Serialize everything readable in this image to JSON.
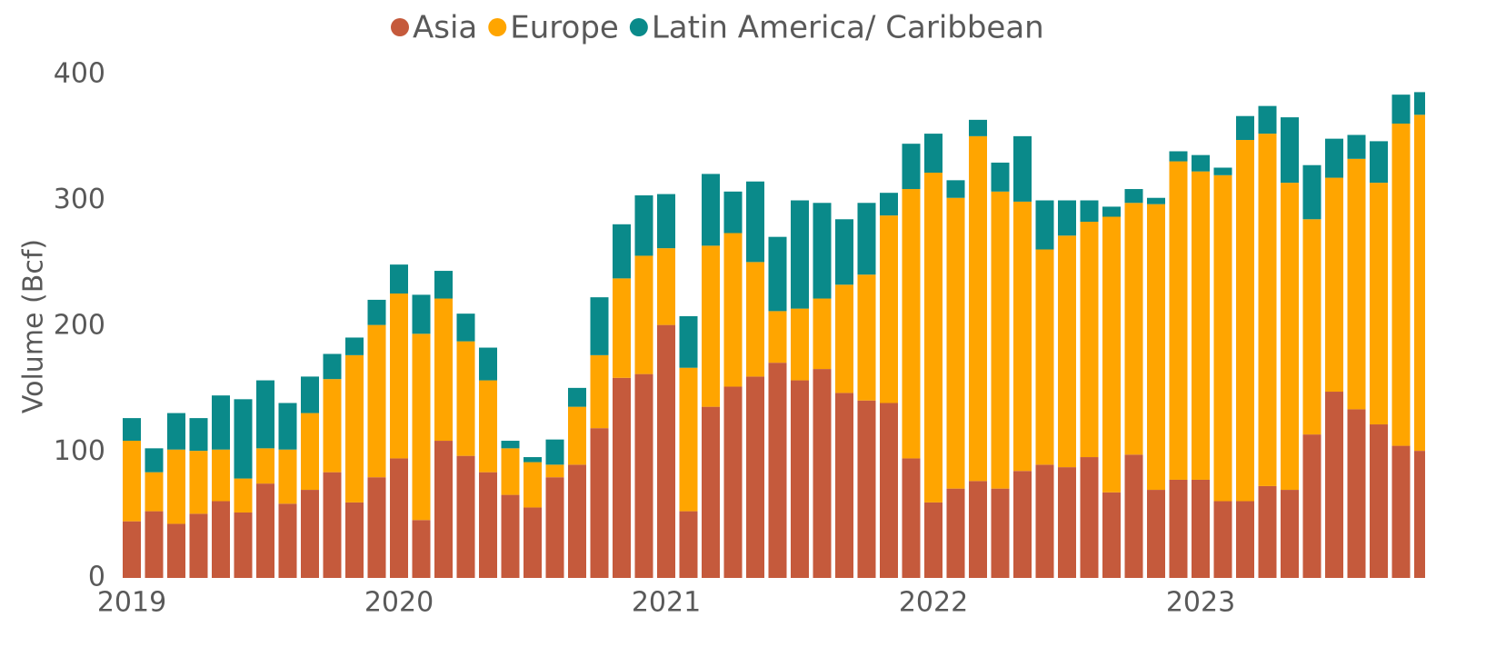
{
  "chart_data": {
    "type": "stacked_bar",
    "y_label": "Volume (Bcf)",
    "categories": [
      "2019",
      null,
      null,
      null,
      null,
      null,
      null,
      null,
      null,
      null,
      null,
      null,
      "2020",
      null,
      null,
      null,
      null,
      null,
      null,
      null,
      null,
      null,
      null,
      null,
      "2021",
      null,
      null,
      null,
      null,
      null,
      null,
      null,
      null,
      null,
      null,
      null,
      "2022",
      null,
      null,
      null,
      null,
      null,
      null,
      null,
      null,
      null,
      null,
      null,
      "2023",
      null,
      null,
      null,
      null,
      null,
      null,
      null,
      null,
      null,
      null
    ],
    "series": [
      {
        "name": "Asia",
        "color": "#c55a3c",
        "values": [
          45,
          53,
          43,
          51,
          61,
          52,
          75,
          59,
          70,
          84,
          60,
          80,
          95,
          46,
          109,
          97,
          84,
          66,
          56,
          80,
          90,
          119,
          159,
          162,
          201,
          53,
          136,
          152,
          160,
          171,
          157,
          166,
          147,
          141,
          139,
          95,
          60,
          71,
          77,
          71,
          85,
          90,
          88,
          96,
          68,
          98,
          70,
          78,
          78,
          61,
          61,
          73,
          70,
          114,
          148,
          134,
          122,
          105,
          101
        ]
      },
      {
        "name": "Europe",
        "color": "#ffa500",
        "values": [
          64,
          31,
          59,
          50,
          41,
          27,
          28,
          43,
          61,
          74,
          117,
          121,
          131,
          148,
          113,
          91,
          73,
          37,
          36,
          10,
          46,
          58,
          79,
          94,
          61,
          114,
          128,
          122,
          91,
          41,
          57,
          56,
          86,
          100,
          149,
          214,
          262,
          231,
          274,
          236,
          214,
          171,
          184,
          187,
          219,
          200,
          227,
          253,
          245,
          259,
          287,
          280,
          244,
          171,
          170,
          199,
          192,
          256,
          267
        ]
      },
      {
        "name": "Latin America/ Caribbean",
        "color": "#0a8a8a",
        "values": [
          18,
          19,
          29,
          26,
          43,
          63,
          54,
          37,
          29,
          20,
          14,
          20,
          23,
          31,
          22,
          22,
          26,
          6,
          4,
          20,
          15,
          46,
          43,
          48,
          43,
          41,
          57,
          33,
          64,
          59,
          86,
          76,
          52,
          57,
          18,
          36,
          31,
          14,
          13,
          23,
          52,
          39,
          28,
          17,
          8,
          11,
          5,
          8,
          13,
          6,
          19,
          22,
          52,
          43,
          31,
          19,
          33,
          23,
          18
        ]
      }
    ],
    "ylim": [
      0,
      400
    ],
    "yticks": [
      0,
      100,
      200,
      300,
      400
    ],
    "grid": false,
    "legend": "top"
  }
}
